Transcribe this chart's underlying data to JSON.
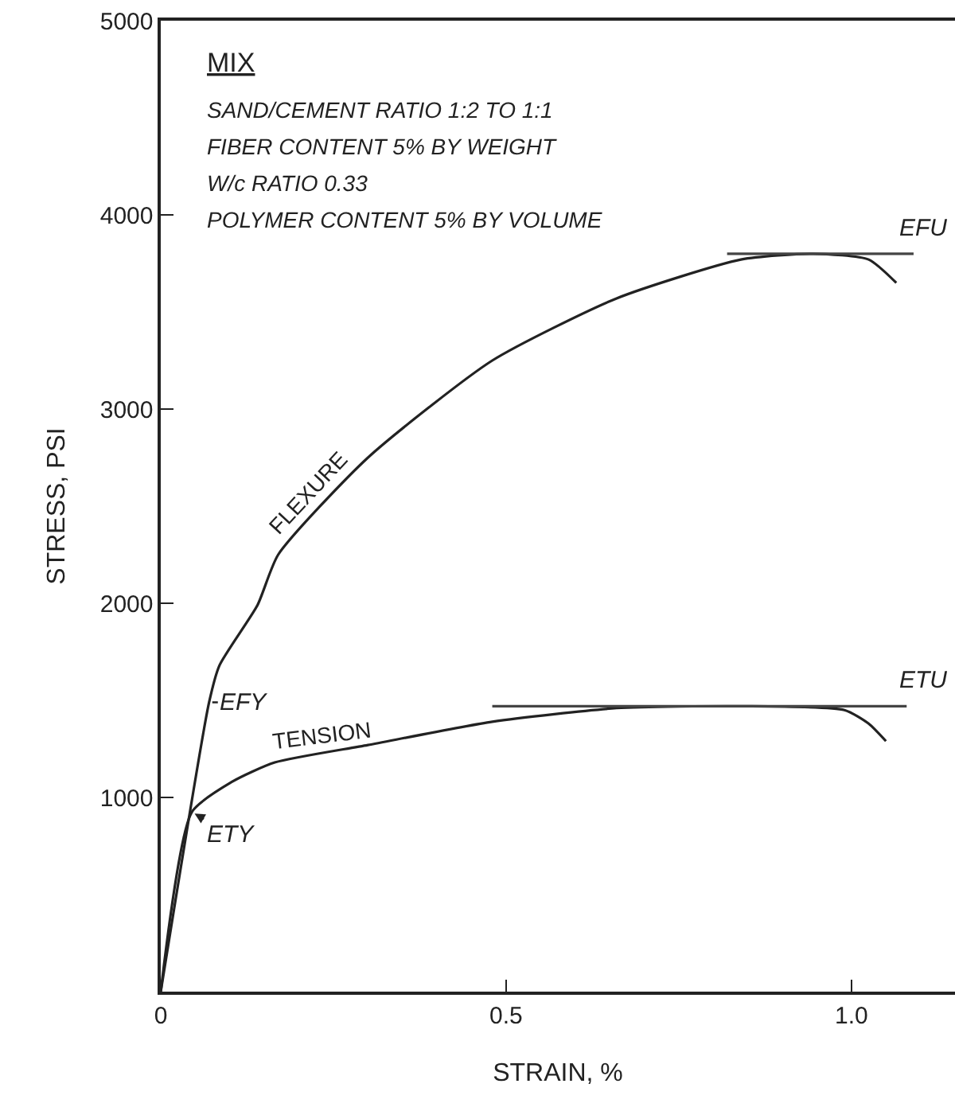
{
  "chart_data": {
    "type": "line",
    "xlabel": "STRAIN, %",
    "ylabel": "STRESS, PSI",
    "xlim": [
      0,
      1.15
    ],
    "ylim": [
      0,
      5000
    ],
    "xticks": [
      0,
      0.5,
      {
        "value": 1,
        "label": "1.0"
      }
    ],
    "yticks": [
      1000,
      2000,
      3000,
      4000,
      5000
    ],
    "grid": false,
    "legend": false,
    "marker": "none",
    "line_style": "solid",
    "series": [
      {
        "name": "FLEXURE",
        "color": "#222222",
        "x": [
          0,
          0.07,
          0.085,
          0.14,
          0.17,
          0.3,
          0.48,
          0.66,
          0.84,
          0.945,
          1.025,
          1.065
        ],
        "values": [
          0,
          1490,
          1680,
          1990,
          2250,
          2750,
          3250,
          3570,
          3770,
          3800,
          3770,
          3650
        ]
      },
      {
        "name": "TENSION",
        "color": "#222222",
        "x": [
          0,
          0.045,
          0.103,
          0.165,
          0.3,
          0.48,
          0.66,
          0.84,
          0.99,
          1.025,
          1.05
        ],
        "values": [
          0,
          925,
          1080,
          1180,
          1270,
          1390,
          1460,
          1470,
          1450,
          1380,
          1290
        ]
      },
      {
        "color": "#444444",
        "x": [
          0.82,
          1.09
        ],
        "values": [
          3800,
          3800
        ]
      },
      {
        "color": "#444444",
        "x": [
          0.48,
          1.08
        ],
        "values": [
          1470,
          1470
        ]
      }
    ],
    "annotations": [
      "MIX",
      "SAND/CEMENT RATIO 1:2 TO 1:1",
      "FIBER CONTENT 5% BY WEIGHT",
      "W/c RATIO 0.33",
      "POLYMER CONTENT 5% BY VOLUME",
      {
        "text": "EFY",
        "x": 0.07,
        "y": 1490
      },
      {
        "text": "ETY",
        "x": 0.045,
        "y": 925
      },
      {
        "text": "EFU",
        "x": 1.09,
        "y": 3800
      },
      {
        "text": "ETU",
        "x": 1.08,
        "y": 1470
      }
    ]
  }
}
